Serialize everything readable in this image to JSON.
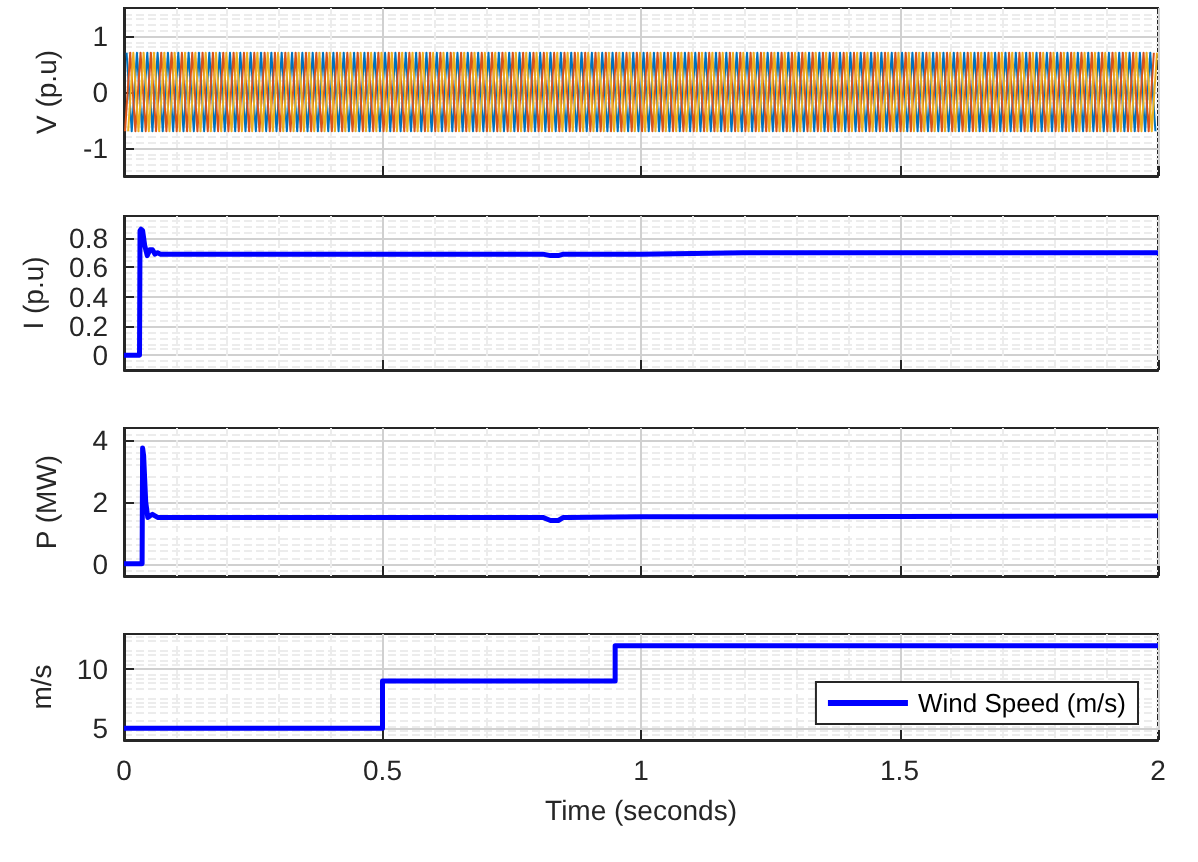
{
  "chart_data": [
    {
      "type": "line",
      "ylabel": "V (p.u)",
      "xlim": [
        0,
        2
      ],
      "xticks": [
        0,
        0.5,
        1,
        1.5,
        2
      ],
      "ylim": [
        -1.5,
        1.5
      ],
      "yticks": [
        -1,
        0,
        1
      ],
      "grid": true,
      "tick_labels": "y",
      "series": [
        {
          "color": "#0072bd",
          "x": [
            0.005,
            0.015,
            0.025,
            0.035,
            0.045,
            0.055,
            0.065,
            0.075,
            0.085,
            0.095,
            0.105,
            0.115,
            0.125,
            0.135,
            0.145,
            0.155,
            0.165,
            0.175,
            0.185,
            0.195,
            0.205,
            0.215,
            0.225,
            0.235,
            0.245,
            0.255,
            0.265,
            0.275,
            0.285,
            0.295,
            0.305,
            0.315,
            0.325,
            0.335,
            0.345,
            0.355,
            0.365,
            0.375,
            0.385,
            0.395,
            0.405,
            0.415,
            0.425,
            0.435,
            0.445,
            0.455,
            0.465,
            0.475,
            0.485,
            0.495,
            0.505,
            0.515,
            0.525,
            0.535,
            0.545,
            0.555,
            0.565,
            0.575,
            0.585,
            0.595,
            0.605,
            0.615,
            0.625,
            0.635,
            0.645,
            0.655,
            0.665,
            0.675,
            0.685,
            0.695,
            0.705,
            0.715,
            0.725,
            0.735,
            0.745,
            0.755,
            0.765,
            0.775,
            0.785,
            0.795,
            0.805,
            0.815,
            0.825,
            0.835,
            0.845,
            0.855,
            0.865,
            0.875,
            0.885,
            0.895,
            0.905,
            0.915,
            0.925,
            0.935,
            0.945,
            0.955,
            0.965,
            0.975,
            0.985,
            0.995,
            1.005,
            1.015,
            1.025,
            1.035,
            1.045,
            1.055,
            1.065,
            1.075,
            1.085,
            1.095,
            1.105,
            1.115,
            1.125,
            1.135,
            1.145,
            1.155,
            1.165,
            1.175,
            1.185,
            1.195,
            1.205,
            1.215,
            1.225,
            1.235,
            1.245,
            1.255,
            1.265,
            1.275,
            1.285,
            1.295,
            1.305,
            1.315,
            1.325,
            1.335,
            1.345,
            1.355,
            1.365,
            1.375,
            1.385,
            1.395,
            1.405,
            1.415,
            1.425,
            1.435,
            1.445,
            1.455,
            1.465,
            1.475,
            1.485,
            1.495,
            1.505,
            1.515,
            1.525,
            1.535,
            1.545,
            1.555,
            1.565,
            1.575,
            1.585,
            1.595,
            1.605,
            1.615,
            1.625,
            1.635,
            1.645,
            1.655,
            1.665,
            1.675,
            1.685,
            1.695,
            1.705,
            1.715,
            1.725,
            1.735,
            1.745,
            1.755,
            1.765,
            1.775,
            1.785,
            1.795,
            1.805,
            1.815,
            1.825,
            1.835,
            1.845,
            1.855,
            1.865,
            1.875,
            1.885,
            1.895,
            1.905,
            1.915,
            1.925,
            1.935,
            1.945,
            1.955,
            1.965,
            1.975,
            1.985,
            1.995
          ],
          "values": [
            0.7,
            -0.7,
            0.7,
            -0.7,
            0.7,
            -0.7,
            0.7,
            -0.7,
            0.7,
            -0.7,
            0.7,
            -0.7,
            0.7,
            -0.7,
            0.7,
            -0.7,
            0.7,
            -0.7,
            0.7,
            -0.7,
            0.7,
            -0.7,
            0.7,
            -0.7,
            0.7,
            -0.7,
            0.7,
            -0.7,
            0.7,
            -0.7,
            0.7,
            -0.7,
            0.7,
            -0.7,
            0.7,
            -0.7,
            0.7,
            -0.7,
            0.7,
            -0.7,
            0.7,
            -0.7,
            0.7,
            -0.7,
            0.7,
            -0.7,
            0.7,
            -0.7,
            0.7,
            -0.7,
            0.7,
            -0.7,
            0.7,
            -0.7,
            0.7,
            -0.7,
            0.7,
            -0.7,
            0.7,
            -0.7,
            0.7,
            -0.7,
            0.7,
            -0.7,
            0.7,
            -0.7,
            0.7,
            -0.7,
            0.7,
            -0.7,
            0.7,
            -0.7,
            0.7,
            -0.7,
            0.7,
            -0.7,
            0.7,
            -0.7,
            0.7,
            -0.7,
            0.7,
            -0.7,
            0.7,
            -0.7,
            0.7,
            -0.7,
            0.7,
            -0.7,
            0.7,
            -0.7,
            0.7,
            -0.7,
            0.7,
            -0.7,
            0.7,
            -0.7,
            0.7,
            -0.7,
            0.7,
            -0.7,
            0.7,
            -0.7,
            0.7,
            -0.7,
            0.7,
            -0.7,
            0.7,
            -0.7,
            0.7,
            -0.7,
            0.7,
            -0.7,
            0.7,
            -0.7,
            0.7,
            -0.7,
            0.7,
            -0.7,
            0.7,
            -0.7,
            0.7,
            -0.7,
            0.7,
            -0.7,
            0.7,
            -0.7,
            0.7,
            -0.7,
            0.7,
            -0.7,
            0.7,
            -0.7,
            0.7,
            -0.7,
            0.7,
            -0.7,
            0.7,
            -0.7,
            0.7,
            -0.7,
            0.7,
            -0.7,
            0.7,
            -0.7,
            0.7,
            -0.7,
            0.7,
            -0.7,
            0.7,
            -0.7,
            0.7,
            -0.7,
            0.7,
            -0.7,
            0.7,
            -0.7,
            0.7,
            -0.7,
            0.7,
            -0.7,
            0.7,
            -0.7,
            0.7,
            -0.7,
            0.7,
            -0.7,
            0.7,
            -0.7,
            0.7,
            -0.7,
            0.7,
            -0.7,
            0.7,
            -0.7,
            0.7,
            -0.7,
            0.7,
            -0.7,
            0.7,
            -0.7,
            0.7,
            -0.7,
            0.7,
            -0.7,
            0.7,
            -0.7,
            0.7,
            -0.7,
            0.7,
            -0.7,
            0.7,
            -0.7,
            0.7,
            -0.7,
            0.7,
            -0.7,
            0.7,
            -0.7,
            0.7,
            -0.7
          ]
        },
        {
          "color": "#d95319",
          "x": [
            0.002,
            0.012,
            0.022,
            0.032,
            0.042,
            0.052,
            0.062,
            0.072,
            0.082,
            0.092,
            0.102,
            0.112,
            0.122,
            0.132,
            0.142,
            0.152,
            0.162,
            0.172,
            0.182,
            0.192,
            0.202,
            0.212,
            0.222,
            0.232,
            0.242,
            0.252,
            0.262,
            0.272,
            0.282,
            0.292,
            0.302,
            0.312,
            0.322,
            0.332,
            0.342,
            0.352,
            0.362,
            0.372,
            0.382,
            0.392,
            0.402,
            0.412,
            0.422,
            0.432,
            0.442,
            0.452,
            0.462,
            0.472,
            0.482,
            0.492,
            0.502,
            0.512,
            0.522,
            0.532,
            0.542,
            0.552,
            0.562,
            0.572,
            0.582,
            0.592,
            0.602,
            0.612,
            0.622,
            0.632,
            0.642,
            0.652,
            0.662,
            0.672,
            0.682,
            0.692,
            0.702,
            0.712,
            0.722,
            0.732,
            0.742,
            0.752,
            0.762,
            0.772,
            0.782,
            0.792,
            0.802,
            0.812,
            0.822,
            0.832,
            0.842,
            0.852,
            0.862,
            0.872,
            0.882,
            0.892,
            0.902,
            0.912,
            0.922,
            0.932,
            0.942,
            0.952,
            0.962,
            0.972,
            0.982,
            0.992,
            1.002,
            1.012,
            1.022,
            1.032,
            1.042,
            1.052,
            1.062,
            1.072,
            1.082,
            1.092,
            1.102,
            1.112,
            1.122,
            1.132,
            1.142,
            1.152,
            1.162,
            1.172,
            1.182,
            1.192,
            1.202,
            1.212,
            1.222,
            1.232,
            1.242,
            1.252,
            1.262,
            1.272,
            1.282,
            1.292,
            1.302,
            1.312,
            1.322,
            1.332,
            1.342,
            1.352,
            1.362,
            1.372,
            1.382,
            1.392,
            1.402,
            1.412,
            1.422,
            1.432,
            1.442,
            1.452,
            1.462,
            1.472,
            1.482,
            1.492,
            1.502,
            1.512,
            1.522,
            1.532,
            1.542,
            1.552,
            1.562,
            1.572,
            1.582,
            1.592,
            1.602,
            1.612,
            1.622,
            1.632,
            1.642,
            1.652,
            1.662,
            1.672,
            1.682,
            1.692,
            1.702,
            1.712,
            1.722,
            1.732,
            1.742,
            1.752,
            1.762,
            1.772,
            1.782,
            1.792,
            1.802,
            1.812,
            1.822,
            1.832,
            1.842,
            1.852,
            1.862,
            1.872,
            1.882,
            1.892,
            1.902,
            1.912,
            1.922,
            1.932,
            1.942,
            1.952,
            1.962,
            1.972,
            1.982,
            1.992
          ],
          "values": [
            -0.7,
            0.7,
            -0.7,
            0.7,
            -0.7,
            0.7,
            -0.7,
            0.7,
            -0.7,
            0.7,
            -0.7,
            0.7,
            -0.7,
            0.7,
            -0.7,
            0.7,
            -0.7,
            0.7,
            -0.7,
            0.7,
            -0.7,
            0.7,
            -0.7,
            0.7,
            -0.7,
            0.7,
            -0.7,
            0.7,
            -0.7,
            0.7,
            -0.7,
            0.7,
            -0.7,
            0.7,
            -0.7,
            0.7,
            -0.7,
            0.7,
            -0.7,
            0.7,
            -0.7,
            0.7,
            -0.7,
            0.7,
            -0.7,
            0.7,
            -0.7,
            0.7,
            -0.7,
            0.7,
            -0.7,
            0.7,
            -0.7,
            0.7,
            -0.7,
            0.7,
            -0.7,
            0.7,
            -0.7,
            0.7,
            -0.7,
            0.7,
            -0.7,
            0.7,
            -0.7,
            0.7,
            -0.7,
            0.7,
            -0.7,
            0.7,
            -0.7,
            0.7,
            -0.7,
            0.7,
            -0.7,
            0.7,
            -0.7,
            0.7,
            -0.7,
            0.7,
            -0.7,
            0.7,
            -0.7,
            0.7,
            -0.7,
            0.7,
            -0.7,
            0.7,
            -0.7,
            0.7,
            -0.7,
            0.7,
            -0.7,
            0.7,
            -0.7,
            0.7,
            -0.7,
            0.7,
            -0.7,
            0.7,
            -0.7,
            0.7,
            -0.7,
            0.7,
            -0.7,
            0.7,
            -0.7,
            0.7,
            -0.7,
            0.7,
            -0.7,
            0.7,
            -0.7,
            0.7,
            -0.7,
            0.7,
            -0.7,
            0.7,
            -0.7,
            0.7,
            -0.7,
            0.7,
            -0.7,
            0.7,
            -0.7,
            0.7,
            -0.7,
            0.7,
            -0.7,
            0.7,
            -0.7,
            0.7,
            -0.7,
            0.7,
            -0.7,
            0.7,
            -0.7,
            0.7,
            -0.7,
            0.7,
            -0.7,
            0.7,
            -0.7,
            0.7,
            -0.7,
            0.7,
            -0.7,
            0.7,
            -0.7,
            0.7,
            -0.7,
            0.7,
            -0.7,
            0.7,
            -0.7,
            0.7,
            -0.7,
            0.7,
            -0.7,
            0.7,
            -0.7,
            0.7,
            -0.7,
            0.7,
            -0.7,
            0.7,
            -0.7,
            0.7,
            -0.7,
            0.7,
            -0.7,
            0.7,
            -0.7,
            0.7,
            -0.7,
            0.7,
            -0.7,
            0.7,
            -0.7,
            0.7,
            -0.7,
            0.7,
            -0.7,
            0.7,
            -0.7,
            0.7,
            -0.7,
            0.7,
            -0.7,
            0.7,
            -0.7,
            0.7,
            -0.7,
            0.7,
            -0.7,
            0.7,
            -0.7,
            0.7,
            -0.7,
            0.7
          ]
        },
        {
          "color": "#edb120",
          "x": [
            0.008,
            0.018,
            0.028,
            0.038,
            0.048,
            0.058,
            0.068,
            0.078,
            0.088,
            0.098,
            0.108,
            0.118,
            0.128,
            0.138,
            0.148,
            0.158,
            0.168,
            0.178,
            0.188,
            0.198,
            0.208,
            0.218,
            0.228,
            0.238,
            0.248,
            0.258,
            0.268,
            0.278,
            0.288,
            0.298,
            0.308,
            0.318,
            0.328,
            0.338,
            0.348,
            0.358,
            0.368,
            0.378,
            0.388,
            0.398,
            0.408,
            0.418,
            0.428,
            0.438,
            0.448,
            0.458,
            0.468,
            0.478,
            0.488,
            0.498,
            0.508,
            0.518,
            0.528,
            0.538,
            0.548,
            0.558,
            0.568,
            0.578,
            0.588,
            0.598,
            0.608,
            0.618,
            0.628,
            0.638,
            0.648,
            0.658,
            0.668,
            0.678,
            0.688,
            0.698,
            0.708,
            0.718,
            0.728,
            0.738,
            0.748,
            0.758,
            0.768,
            0.778,
            0.788,
            0.798,
            0.808,
            0.818,
            0.828,
            0.838,
            0.848,
            0.858,
            0.868,
            0.878,
            0.888,
            0.898,
            0.908,
            0.918,
            0.928,
            0.938,
            0.948,
            0.958,
            0.968,
            0.978,
            0.988,
            0.998,
            1.008,
            1.018,
            1.028,
            1.038,
            1.048,
            1.058,
            1.068,
            1.078,
            1.088,
            1.098,
            1.108,
            1.118,
            1.128,
            1.138,
            1.148,
            1.158,
            1.168,
            1.178,
            1.188,
            1.198,
            1.208,
            1.218,
            1.228,
            1.238,
            1.248,
            1.258,
            1.268,
            1.278,
            1.288,
            1.298,
            1.308,
            1.318,
            1.328,
            1.338,
            1.348,
            1.358,
            1.368,
            1.378,
            1.388,
            1.398,
            1.408,
            1.418,
            1.428,
            1.438,
            1.448,
            1.458,
            1.468,
            1.478,
            1.488,
            1.498,
            1.508,
            1.518,
            1.528,
            1.538,
            1.548,
            1.558,
            1.568,
            1.578,
            1.588,
            1.598,
            1.608,
            1.618,
            1.628,
            1.638,
            1.648,
            1.658,
            1.668,
            1.678,
            1.688,
            1.698,
            1.708,
            1.718,
            1.728,
            1.738,
            1.748,
            1.758,
            1.768,
            1.778,
            1.788,
            1.798,
            1.808,
            1.818,
            1.828,
            1.838,
            1.848,
            1.858,
            1.868,
            1.878,
            1.888,
            1.898,
            1.908,
            1.918,
            1.928,
            1.938,
            1.948,
            1.958,
            1.968,
            1.978,
            1.988,
            1.998
          ],
          "values": [
            -0.7,
            0.7,
            -0.7,
            0.7,
            -0.7,
            0.7,
            -0.7,
            0.7,
            -0.7,
            0.7,
            -0.7,
            0.7,
            -0.7,
            0.7,
            -0.7,
            0.7,
            -0.7,
            0.7,
            -0.7,
            0.7,
            -0.7,
            0.7,
            -0.7,
            0.7,
            -0.7,
            0.7,
            -0.7,
            0.7,
            -0.7,
            0.7,
            -0.7,
            0.7,
            -0.7,
            0.7,
            -0.7,
            0.7,
            -0.7,
            0.7,
            -0.7,
            0.7,
            -0.7,
            0.7,
            -0.7,
            0.7,
            -0.7,
            0.7,
            -0.7,
            0.7,
            -0.7,
            0.7,
            -0.7,
            0.7,
            -0.7,
            0.7,
            -0.7,
            0.7,
            -0.7,
            0.7,
            -0.7,
            0.7,
            -0.7,
            0.7,
            -0.7,
            0.7,
            -0.7,
            0.7,
            -0.7,
            0.7,
            -0.7,
            0.7,
            -0.7,
            0.7,
            -0.7,
            0.7,
            -0.7,
            0.7,
            -0.7,
            0.7,
            -0.7,
            0.7,
            -0.7,
            0.7,
            -0.7,
            0.7,
            -0.7,
            0.7,
            -0.7,
            0.7,
            -0.7,
            0.7,
            -0.7,
            0.7,
            -0.7,
            0.7,
            -0.7,
            0.7,
            -0.7,
            0.7,
            -0.7,
            0.7,
            -0.7,
            0.7,
            -0.7,
            0.7,
            -0.7,
            0.7,
            -0.7,
            0.7,
            -0.7,
            0.7,
            -0.7,
            0.7,
            -0.7,
            0.7,
            -0.7,
            0.7,
            -0.7,
            0.7,
            -0.7,
            0.7,
            -0.7,
            0.7,
            -0.7,
            0.7,
            -0.7,
            0.7,
            -0.7,
            0.7,
            -0.7,
            0.7,
            -0.7,
            0.7,
            -0.7,
            0.7,
            -0.7,
            0.7,
            -0.7,
            0.7,
            -0.7,
            0.7,
            -0.7,
            0.7,
            -0.7,
            0.7,
            -0.7,
            0.7,
            -0.7,
            0.7,
            -0.7,
            0.7,
            -0.7,
            0.7,
            -0.7,
            0.7,
            -0.7,
            0.7,
            -0.7,
            0.7,
            -0.7,
            0.7,
            -0.7,
            0.7,
            -0.7,
            0.7,
            -0.7,
            0.7,
            -0.7,
            0.7,
            -0.7,
            0.7,
            -0.7,
            0.7,
            -0.7,
            0.7,
            -0.7,
            0.7,
            -0.7,
            0.7,
            -0.7,
            0.7,
            -0.7,
            0.7,
            -0.7,
            0.7,
            -0.7,
            0.7,
            -0.7,
            0.7,
            -0.7,
            0.7,
            -0.7,
            0.7,
            -0.7,
            0.7,
            -0.7,
            0.7,
            -0.7,
            0.7,
            -0.7,
            0.7
          ]
        }
      ]
    },
    {
      "type": "line",
      "ylabel": "I (p.u)",
      "xlim": [
        0,
        2
      ],
      "xticks": [
        0,
        0.5,
        1,
        1.5,
        2
      ],
      "ylim": [
        -0.1,
        0.95
      ],
      "yticks": [
        0,
        0.2,
        0.4,
        0.6,
        0.8
      ],
      "grid": true,
      "tick_labels": "y",
      "series": [
        {
          "color": "#0000ff",
          "x": [
            0,
            0.03,
            0.031,
            0.033,
            0.036,
            0.04,
            0.045,
            0.05,
            0.055,
            0.06,
            0.065,
            0.07,
            0.1,
            0.3,
            0.5,
            0.6,
            0.8,
            0.81,
            0.825,
            0.84,
            0.85,
            0.86,
            1,
            1.2,
            1.5,
            1.8,
            2
          ],
          "values": [
            0,
            0,
            0.85,
            0.86,
            0.85,
            0.75,
            0.68,
            0.72,
            0.72,
            0.69,
            0.7,
            0.69,
            0.69,
            0.69,
            0.69,
            0.69,
            0.69,
            0.69,
            0.68,
            0.68,
            0.69,
            0.69,
            0.69,
            0.7,
            0.7,
            0.7,
            0.7
          ]
        }
      ]
    },
    {
      "type": "line",
      "ylabel": "P (MW)",
      "xlim": [
        0,
        2
      ],
      "xticks": [
        0,
        0.5,
        1,
        1.5,
        2
      ],
      "ylim": [
        -0.4,
        4.4
      ],
      "yticks": [
        0,
        2,
        4
      ],
      "grid": true,
      "tick_labels": "y",
      "series": [
        {
          "color": "#0000ff",
          "x": [
            0,
            0.035,
            0.036,
            0.038,
            0.042,
            0.046,
            0.05,
            0.055,
            0.06,
            0.065,
            0.07,
            0.1,
            0.5,
            0.8,
            0.81,
            0.825,
            0.84,
            0.85,
            0.86,
            1,
            1.5,
            2
          ],
          "values": [
            0,
            0,
            3.75,
            3.5,
            2.0,
            1.5,
            1.55,
            1.6,
            1.55,
            1.5,
            1.5,
            1.5,
            1.5,
            1.5,
            1.5,
            1.4,
            1.4,
            1.5,
            1.5,
            1.52,
            1.53,
            1.55
          ]
        }
      ]
    },
    {
      "type": "step",
      "ylabel": "m/s",
      "xlabel": "Time (seconds)",
      "xlim": [
        0,
        2
      ],
      "xticks": [
        0,
        0.5,
        1,
        1.5,
        2
      ],
      "ylim": [
        4,
        13
      ],
      "yticks": [
        5,
        10
      ],
      "grid": true,
      "legend": "bottom right",
      "series": [
        {
          "name": "Wind Speed (m/s)",
          "color": "#0000ff",
          "x": [
            0,
            0.5,
            0.95,
            2
          ],
          "values": [
            5,
            9,
            12,
            12
          ]
        }
      ]
    }
  ]
}
